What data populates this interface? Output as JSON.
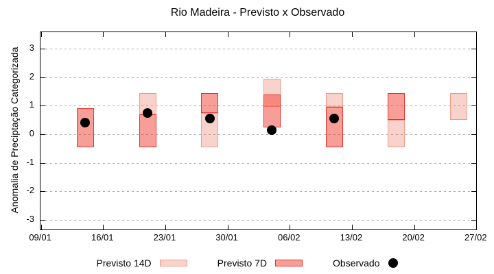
{
  "chart_data": {
    "type": "bar",
    "subtype": "floating-range-bars-with-scatter-overlay",
    "title": "Rio Madeira - Previsto x Observado",
    "xlabel": "",
    "ylabel": "Anomalia de Preciptação Categorizada",
    "ylim": [
      -3.35,
      3.6
    ],
    "y_ticks": [
      3,
      2,
      1,
      0,
      -1,
      -2,
      -3
    ],
    "grid": "horizontal-dashed",
    "x_tick_labels": [
      "09/01",
      "16/01",
      "23/01",
      "30/01",
      "06/02",
      "13/02",
      "20/02",
      "27/02"
    ],
    "x_tick_days": [
      0,
      7,
      14,
      21,
      28,
      35,
      42,
      49
    ],
    "clusters": [
      {
        "date": "14/01",
        "day": 5,
        "previsto_14d": null,
        "previsto_7d": [
          -0.45,
          0.9
        ],
        "observado": 0.4
      },
      {
        "date": "21/01",
        "day": 12,
        "previsto_14d": [
          0.7,
          1.45
        ],
        "previsto_7d": [
          -0.45,
          0.7
        ],
        "observado": 0.75
      },
      {
        "date": "28/01",
        "day": 19,
        "previsto_14d": [
          -0.45,
          0.75
        ],
        "previsto_7d": [
          0.75,
          1.45
        ],
        "observado": 0.55
      },
      {
        "date": "04/02",
        "day": 26,
        "previsto_14d": [
          0.95,
          1.95
        ],
        "previsto_7d": [
          0.25,
          1.4
        ],
        "observado": 0.15
      },
      {
        "date": "11/02",
        "day": 33,
        "previsto_14d": [
          0.95,
          1.45
        ],
        "previsto_7d": [
          -0.45,
          0.95
        ],
        "observado": 0.55
      },
      {
        "date": "18/02",
        "day": 40,
        "previsto_14d": [
          -0.45,
          0.5
        ],
        "previsto_7d": [
          0.5,
          1.45
        ],
        "observado": null
      },
      {
        "date": "25/02",
        "day": 47,
        "previsto_14d": [
          0.5,
          1.45
        ],
        "previsto_7d": null,
        "observado": null
      }
    ],
    "legend": [
      {
        "label": "Previsto 14D",
        "swatch": "box-14d"
      },
      {
        "label": "Previsto 7D",
        "swatch": "box-7d"
      },
      {
        "label": "Observado",
        "swatch": "black-dot"
      }
    ],
    "colors": {
      "previsto_14d_fill": "#f8cdc5",
      "previsto_14d_border": "#f09a8c",
      "previsto_7d_fill": "#f9968c",
      "previsto_7d_border": "#e4332a",
      "overlap_fill": "#f0655c",
      "observado": "#000000",
      "grid": "#a9a9a9",
      "axis": "#000000",
      "background": "#ffffff"
    }
  }
}
